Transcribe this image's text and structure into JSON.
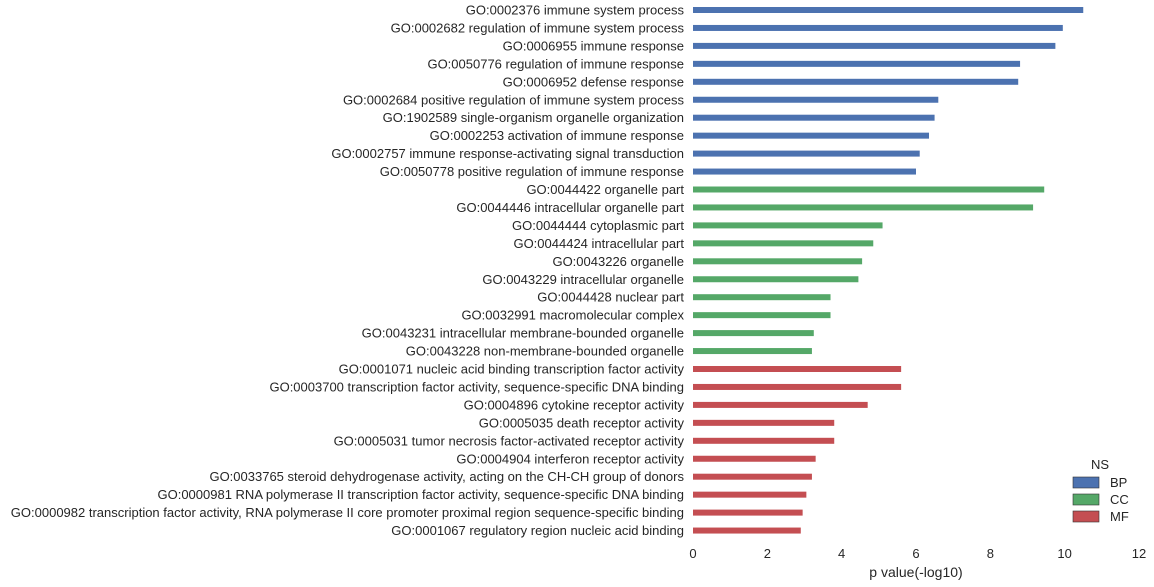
{
  "chart_data": {
    "type": "bar",
    "orientation": "horizontal",
    "xlabel": "p value(-log10)",
    "xlim": [
      0,
      12
    ],
    "xticks": [
      0,
      2,
      4,
      6,
      8,
      10,
      12
    ],
    "grid": false,
    "legend": {
      "title": "NS",
      "placement": "bottom-right",
      "entries": [
        {
          "name": "BP",
          "color": "#4C72B0"
        },
        {
          "name": "CC",
          "color": "#55A868"
        },
        {
          "name": "MF",
          "color": "#C44E52"
        }
      ]
    },
    "bars": [
      {
        "label": "GO:0002376 immune system process",
        "value": 10.5,
        "group": "BP"
      },
      {
        "label": "GO:0002682 regulation of immune system process",
        "value": 9.95,
        "group": "BP"
      },
      {
        "label": "GO:0006955 immune response",
        "value": 9.75,
        "group": "BP"
      },
      {
        "label": "GO:0050776 regulation of immune response",
        "value": 8.8,
        "group": "BP"
      },
      {
        "label": "GO:0006952 defense response",
        "value": 8.75,
        "group": "BP"
      },
      {
        "label": "GO:0002684 positive regulation of immune system process",
        "value": 6.6,
        "group": "BP"
      },
      {
        "label": "GO:1902589 single-organism organelle organization",
        "value": 6.5,
        "group": "BP"
      },
      {
        "label": "GO:0002253 activation of immune response",
        "value": 6.35,
        "group": "BP"
      },
      {
        "label": "GO:0002757 immune response-activating signal transduction",
        "value": 6.1,
        "group": "BP"
      },
      {
        "label": "GO:0050778 positive regulation of immune response",
        "value": 6.0,
        "group": "BP"
      },
      {
        "label": "GO:0044422 organelle part",
        "value": 9.45,
        "group": "CC"
      },
      {
        "label": "GO:0044446 intracellular organelle part",
        "value": 9.15,
        "group": "CC"
      },
      {
        "label": "GO:0044444 cytoplasmic part",
        "value": 5.1,
        "group": "CC"
      },
      {
        "label": "GO:0044424 intracellular part",
        "value": 4.85,
        "group": "CC"
      },
      {
        "label": "GO:0043226 organelle",
        "value": 4.55,
        "group": "CC"
      },
      {
        "label": "GO:0043229 intracellular organelle",
        "value": 4.45,
        "group": "CC"
      },
      {
        "label": "GO:0044428 nuclear part",
        "value": 3.7,
        "group": "CC"
      },
      {
        "label": "GO:0032991 macromolecular complex",
        "value": 3.7,
        "group": "CC"
      },
      {
        "label": "GO:0043231 intracellular membrane-bounded organelle",
        "value": 3.25,
        "group": "CC"
      },
      {
        "label": "GO:0043228 non-membrane-bounded organelle",
        "value": 3.2,
        "group": "CC"
      },
      {
        "label": "GO:0001071 nucleic acid binding transcription factor activity",
        "value": 5.6,
        "group": "MF"
      },
      {
        "label": "GO:0003700 transcription factor activity, sequence-specific DNA binding",
        "value": 5.6,
        "group": "MF"
      },
      {
        "label": "GO:0004896 cytokine receptor activity",
        "value": 4.7,
        "group": "MF"
      },
      {
        "label": "GO:0005035 death receptor activity",
        "value": 3.8,
        "group": "MF"
      },
      {
        "label": "GO:0005031 tumor necrosis factor-activated receptor activity",
        "value": 3.8,
        "group": "MF"
      },
      {
        "label": "GO:0004904 interferon receptor activity",
        "value": 3.3,
        "group": "MF"
      },
      {
        "label": "GO:0033765 steroid dehydrogenase activity, acting on the CH-CH group of donors",
        "value": 3.2,
        "group": "MF"
      },
      {
        "label": "GO:0000981 RNA polymerase II transcription factor activity, sequence-specific DNA binding",
        "value": 3.05,
        "group": "MF"
      },
      {
        "label": "GO:0000982 transcription factor activity, RNA polymerase II core promoter proximal region sequence-specific binding",
        "value": 2.95,
        "group": "MF"
      },
      {
        "label": "GO:0001067 regulatory region nucleic acid binding",
        "value": 2.9,
        "group": "MF"
      }
    ]
  }
}
